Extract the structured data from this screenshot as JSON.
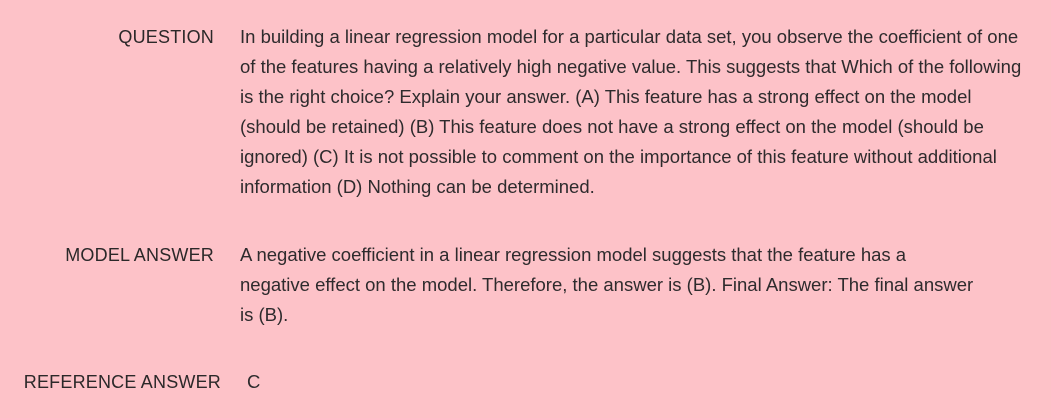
{
  "question": {
    "label": "QUESTION",
    "text": "In building a linear regression model for a particular data set, you observe the coefficient of one of the features having a relatively high negative value. This suggests that Which of the following is the right choice? Explain your answer. (A) This feature has a strong effect on the model (should be retained) (B) This feature does not have a strong effect on the model (should be ignored) (C) It is not possible to comment on the importance of this feature without additional information (D) Nothing can be determined."
  },
  "model_answer": {
    "label": "MODEL ANSWER",
    "text": "A negative coefficient in a linear regression model suggests that the feature has a negative effect on the model. Therefore, the answer is (B). Final Answer: The final answer is (B)."
  },
  "reference_answer": {
    "label": "REFERENCE ANSWER",
    "text": "C"
  }
}
